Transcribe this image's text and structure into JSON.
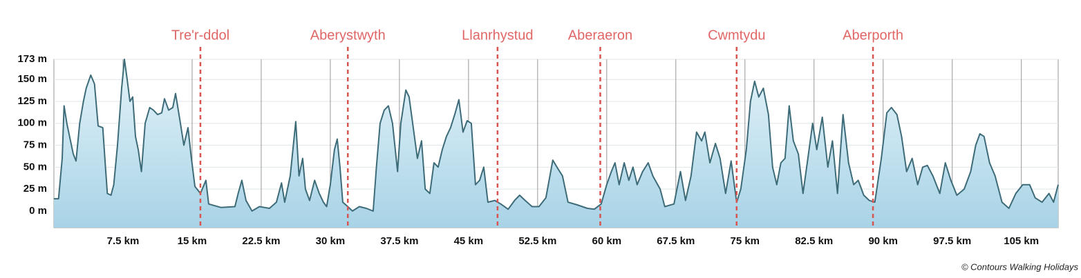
{
  "chart_data": {
    "type": "area",
    "xlim": [
      0,
      109
    ],
    "ylim": [
      -19,
      173
    ],
    "xticks": [
      {
        "value": 7.5,
        "label": "7.5 km"
      },
      {
        "value": 15,
        "label": "15 km"
      },
      {
        "value": 22.5,
        "label": "22.5 km"
      },
      {
        "value": 30,
        "label": "30 km"
      },
      {
        "value": 37.5,
        "label": "37.5 km"
      },
      {
        "value": 45,
        "label": "45 km"
      },
      {
        "value": 52.5,
        "label": "52.5 km"
      },
      {
        "value": 60,
        "label": "60 km"
      },
      {
        "value": 67.5,
        "label": "67.5 km"
      },
      {
        "value": 75,
        "label": "75 km"
      },
      {
        "value": 82.5,
        "label": "82.5 km"
      },
      {
        "value": 90,
        "label": "90 km"
      },
      {
        "value": 97.5,
        "label": "97.5 km"
      },
      {
        "value": 105,
        "label": "105 km"
      }
    ],
    "yticks": [
      {
        "value": 0,
        "label": "0 m"
      },
      {
        "value": 25,
        "label": "25 m"
      },
      {
        "value": 50,
        "label": "50 m"
      },
      {
        "value": 75,
        "label": "75 m"
      },
      {
        "value": 100,
        "label": "100 m"
      },
      {
        "value": 125,
        "label": "125 m"
      },
      {
        "value": 150,
        "label": "150 m"
      },
      {
        "value": 173,
        "label": "173 m"
      }
    ],
    "grid": true,
    "color": "#3d6b78",
    "annotations": [
      {
        "label": "Tre'r-ddol",
        "x": 15.9
      },
      {
        "label": "Aberystwyth",
        "x": 31.9
      },
      {
        "label": "Llanrhystud",
        "x": 48.15
      },
      {
        "label": "Aberaeron",
        "x": 59.3
      },
      {
        "label": "Cwmtydu",
        "x": 74.1
      },
      {
        "label": "Aberporth",
        "x": 88.9
      }
    ],
    "credit": "© Contours Walking Holidays",
    "x": [
      0,
      0.5,
      0.9,
      1.1,
      1.4,
      1.8,
      2.1,
      2.4,
      2.8,
      3.2,
      3.5,
      4.0,
      4.4,
      4.8,
      5.3,
      5.6,
      5.8,
      6.2,
      6.5,
      6.9,
      7.35,
      7.65,
      7.95,
      8.25,
      8.55,
      8.85,
      9.15,
      9.5,
      9.9,
      10.4,
      10.8,
      11.25,
      11.7,
      12.0,
      12.45,
      12.9,
      13.2,
      13.65,
      14.1,
      14.55,
      14.9,
      15.3,
      15.9,
      16.5,
      16.8,
      18.15,
      19.65,
      20.0,
      20.4,
      20.85,
      21.5,
      22.3,
      23.4,
      24.15,
      24.7,
      25.05,
      25.65,
      26.25,
      26.6,
      27.0,
      27.3,
      27.75,
      28.3,
      28.8,
      29.25,
      29.6,
      30.0,
      30.45,
      30.75,
      31.05,
      31.35,
      31.9,
      32.4,
      33.15,
      33.9,
      34.65,
      35.0,
      35.4,
      35.85,
      36.3,
      36.75,
      37.3,
      37.65,
      38.2,
      38.55,
      39.0,
      39.45,
      39.9,
      40.3,
      40.8,
      41.25,
      41.7,
      42.15,
      42.6,
      43.05,
      43.5,
      43.95,
      44.4,
      44.85,
      45.3,
      45.75,
      46.2,
      46.65,
      47.1,
      47.85,
      48.5,
      49.3,
      50.0,
      50.55,
      51.15,
      51.9,
      52.65,
      53.4,
      54.15,
      54.6,
      55.2,
      55.8,
      56.8,
      57.9,
      58.65,
      59.4,
      60.0,
      60.5,
      60.9,
      61.35,
      61.9,
      62.4,
      62.85,
      63.3,
      63.9,
      64.5,
      65.0,
      65.8,
      66.3,
      67.3,
      68.0,
      68.55,
      69.15,
      69.75,
      70.3,
      70.65,
      71.2,
      71.8,
      72.3,
      72.9,
      73.5,
      74.1,
      74.55,
      75.15,
      75.6,
      76.05,
      76.5,
      77.0,
      77.55,
      78.0,
      78.45,
      78.9,
      79.35,
      79.8,
      80.25,
      80.8,
      81.3,
      81.9,
      82.35,
      82.8,
      83.4,
      84.0,
      84.5,
      85.05,
      85.65,
      86.25,
      86.8,
      87.3,
      87.9,
      88.5,
      89.1,
      89.8,
      90.4,
      90.9,
      91.5,
      92.0,
      92.55,
      93.15,
      93.75,
      94.3,
      94.8,
      95.4,
      96.15,
      96.75,
      97.35,
      98.0,
      98.8,
      99.5,
      100.05,
      100.5,
      100.95,
      101.55,
      102.15,
      102.9,
      103.65,
      104.4,
      105.15,
      105.9,
      106.5,
      107.25,
      108.0,
      108.5,
      109.0
    ],
    "values": [
      14,
      14,
      60,
      120,
      100,
      80,
      65,
      57,
      100,
      125,
      140,
      155,
      145,
      97,
      95,
      50,
      20,
      18,
      30,
      75,
      140,
      173,
      150,
      125,
      130,
      85,
      70,
      45,
      100,
      118,
      115,
      110,
      112,
      128,
      115,
      118,
      134,
      105,
      75,
      95,
      62,
      28,
      20,
      35,
      8,
      4,
      5,
      20,
      35,
      12,
      0,
      5,
      3,
      10,
      32,
      10,
      40,
      102,
      40,
      60,
      25,
      12,
      35,
      20,
      10,
      5,
      30,
      70,
      82,
      50,
      10,
      5,
      0,
      5,
      3,
      0,
      50,
      100,
      115,
      120,
      100,
      45,
      100,
      138,
      130,
      95,
      60,
      80,
      25,
      20,
      55,
      50,
      70,
      85,
      95,
      110,
      127,
      90,
      103,
      100,
      30,
      35,
      50,
      10,
      12,
      8,
      2,
      12,
      18,
      12,
      5,
      5,
      15,
      58,
      50,
      40,
      10,
      7,
      3,
      2,
      8,
      30,
      45,
      55,
      30,
      55,
      35,
      50,
      30,
      45,
      55,
      40,
      25,
      5,
      8,
      45,
      12,
      40,
      90,
      80,
      90,
      55,
      77,
      60,
      20,
      57,
      10,
      25,
      70,
      125,
      148,
      130,
      140,
      110,
      50,
      30,
      55,
      60,
      120,
      80,
      65,
      20,
      65,
      100,
      70,
      107,
      50,
      80,
      20,
      110,
      55,
      30,
      35,
      18,
      12,
      10,
      60,
      112,
      118,
      110,
      85,
      45,
      60,
      30,
      50,
      52,
      40,
      20,
      55,
      35,
      18,
      25,
      45,
      75,
      88,
      85,
      55,
      40,
      10,
      3,
      20,
      30,
      30,
      15,
      10,
      20,
      10,
      30
    ]
  }
}
